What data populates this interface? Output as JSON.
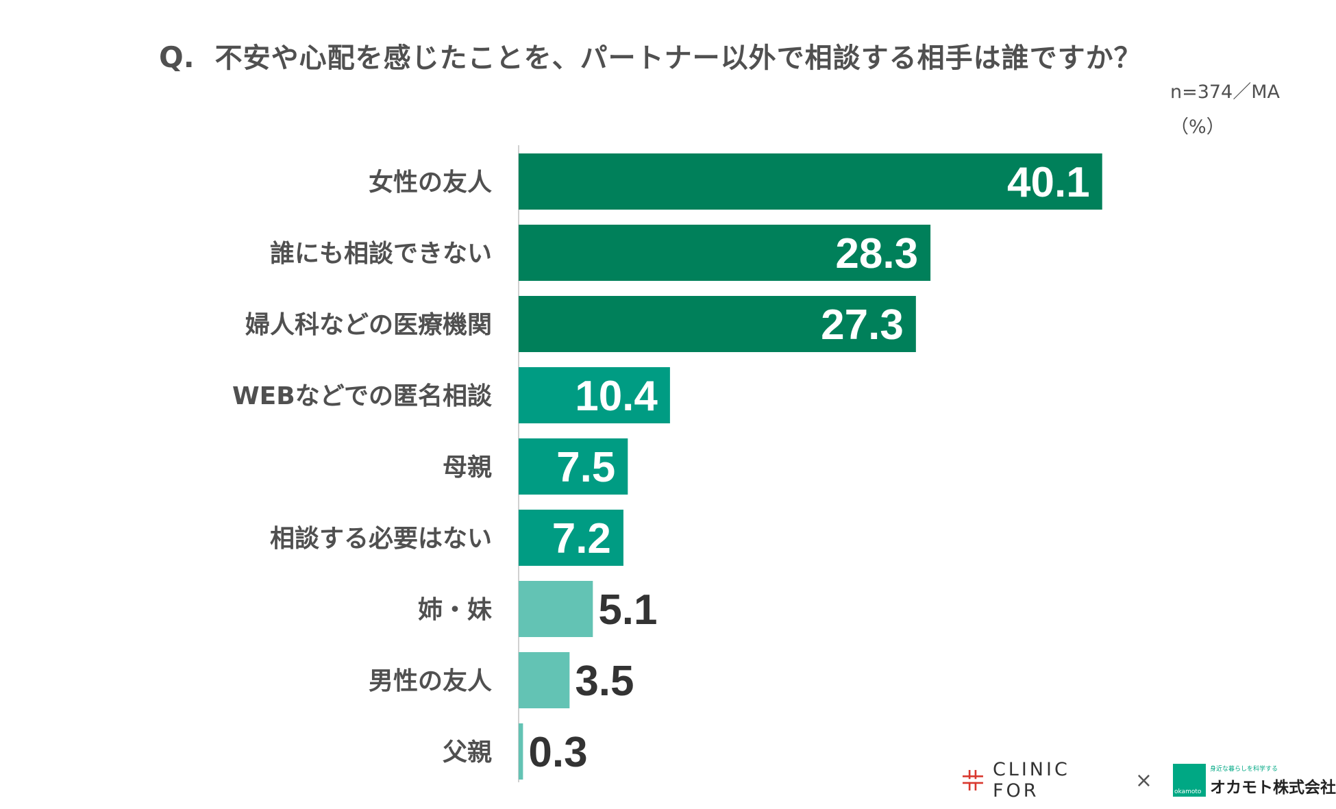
{
  "header": {
    "q_label": "Q.",
    "question": "不安や心配を感じたことを、パートナー以外で相談する相手は誰ですか？",
    "sample": "n=374／MA",
    "unit": "（%）"
  },
  "chart_data": {
    "type": "bar",
    "orientation": "horizontal",
    "title": "不安や心配を感じたことを、パートナー以外で相談する相手は誰ですか？",
    "xlabel": "",
    "ylabel": "",
    "unit": "%",
    "xlim": [
      0,
      50
    ],
    "categories": [
      "女性の友人",
      "誰にも相談できない",
      "婦人科などの医療機関",
      "WEBなどでの匿名相談",
      "母親",
      "相談する必要はない",
      "姉・妹",
      "男性の友人",
      "父親"
    ],
    "values": [
      40.1,
      28.3,
      27.3,
      10.4,
      7.5,
      7.2,
      5.1,
      3.5,
      0.3
    ],
    "value_labels": [
      "40.1",
      "28.3",
      "27.3",
      "10.4",
      "7.5",
      "7.2",
      "5.1",
      "3.5",
      "0.3"
    ],
    "bar_colors": [
      "#00805a",
      "#00805a",
      "#00805a",
      "#009c83",
      "#009c83",
      "#009c83",
      "#63c3b4",
      "#63c3b4",
      "#63c3b4"
    ],
    "label_colors": [
      "#ffffff",
      "#ffffff",
      "#ffffff",
      "#ffffff",
      "#ffffff",
      "#ffffff",
      "#333333",
      "#333333",
      "#333333"
    ]
  },
  "footer": {
    "clinic": "CLINIC FOR",
    "times": "×",
    "okamoto": "オカモト株式会社",
    "okamoto_tag": "身近な暮らしを科学する",
    "okamoto_small": "okamoto"
  }
}
